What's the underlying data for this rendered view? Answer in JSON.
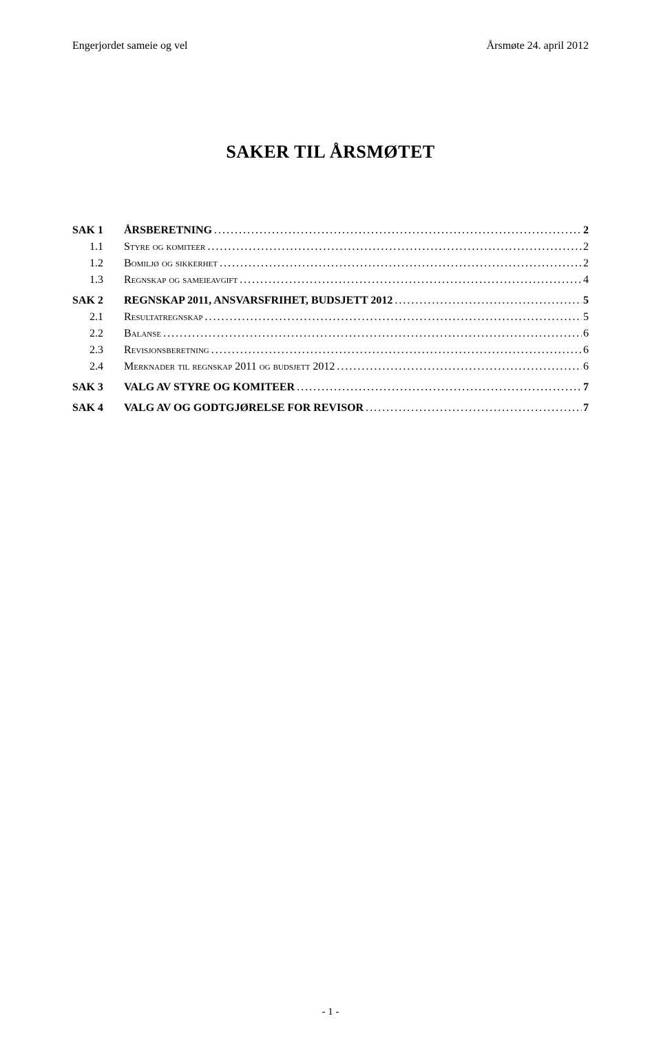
{
  "header": {
    "left": "Engerjordet sameie og vel",
    "right": "Årsmøte 24. april 2012"
  },
  "title": "SAKER TIL ÅRSMØTET",
  "toc": [
    {
      "label": "SAK 1",
      "text": "ÅRSBERETNING",
      "page": "2",
      "level": 1,
      "bold": true,
      "smallcaps": false
    },
    {
      "label": "1.1",
      "text": "Styre og komiteer",
      "page": "2",
      "level": 2,
      "bold": false,
      "smallcaps": true
    },
    {
      "label": "1.2",
      "text": "Bomiljø og sikkerhet",
      "page": "2",
      "level": 2,
      "bold": false,
      "smallcaps": true
    },
    {
      "label": "1.3",
      "text": "Regnskap og sameieavgift",
      "page": "4",
      "level": 2,
      "bold": false,
      "smallcaps": true
    },
    {
      "label": "SAK 2",
      "text": "REGNSKAP 2011, ANSVARSFRIHET, BUDSJETT 2012",
      "page": "5",
      "level": 1,
      "bold": true,
      "smallcaps": false
    },
    {
      "label": "2.1",
      "text": "Resultatregnskap",
      "page": "5",
      "level": 2,
      "bold": false,
      "smallcaps": true
    },
    {
      "label": "2.2",
      "text": "Balanse",
      "page": "6",
      "level": 2,
      "bold": false,
      "smallcaps": true
    },
    {
      "label": "2.3",
      "text": "Revisjonsberetning",
      "page": "6",
      "level": 2,
      "bold": false,
      "smallcaps": true
    },
    {
      "label": "2.4",
      "text": "Merknader til regnskap 2011 og budsjett 2012",
      "page": "6",
      "level": 2,
      "bold": false,
      "smallcaps": true
    },
    {
      "label": "SAK 3",
      "text": "VALG AV STYRE OG KOMITEER",
      "page": "7",
      "level": 1,
      "bold": true,
      "smallcaps": false
    },
    {
      "label": "SAK 4",
      "text": "VALG AV OG GODTGJØRELSE FOR REVISOR",
      "page": "7",
      "level": 1,
      "bold": true,
      "smallcaps": false
    }
  ],
  "footer": "- 1 -"
}
